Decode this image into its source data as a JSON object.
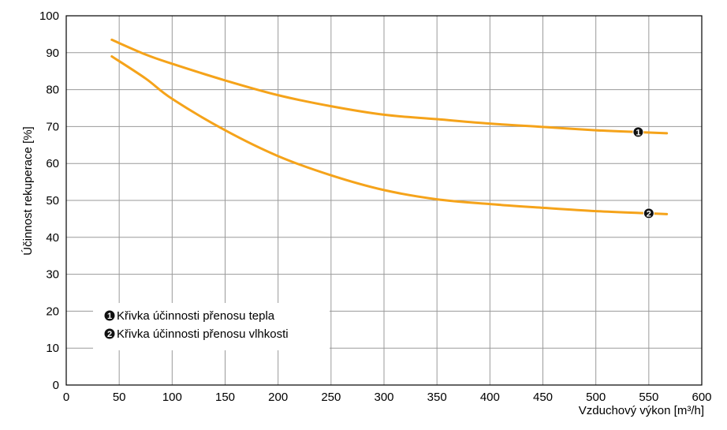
{
  "chart_data": {
    "type": "line",
    "xlabel": "Vzduchový výkon [m³/h]",
    "ylabel": "Účinnost rekuperace [%]",
    "xlim": [
      0,
      600
    ],
    "ylim": [
      0,
      100
    ],
    "x_ticks": [
      0,
      50,
      100,
      150,
      200,
      250,
      300,
      350,
      400,
      450,
      500,
      550,
      600
    ],
    "y_ticks": [
      0,
      10,
      20,
      30,
      40,
      50,
      60,
      70,
      80,
      90,
      100
    ],
    "grid": true,
    "legend_position": "bottom-left",
    "line_color": "#f5a31a",
    "series": [
      {
        "name": "Křivka účinnosti přenosu tepla",
        "marker": "1",
        "x": [
          43,
          75,
          100,
          150,
          200,
          250,
          300,
          350,
          400,
          450,
          500,
          540,
          567
        ],
        "y": [
          93.5,
          89.5,
          87.0,
          82.5,
          78.5,
          75.5,
          73.2,
          72.0,
          70.8,
          69.9,
          69.0,
          68.5,
          68.2
        ]
      },
      {
        "name": "Křivka účinnosti přenosu vlhkosti",
        "marker": "2",
        "x": [
          43,
          75,
          100,
          150,
          200,
          250,
          300,
          350,
          400,
          450,
          500,
          550,
          567
        ],
        "y": [
          89.0,
          83.0,
          77.5,
          69.0,
          62.0,
          56.8,
          52.8,
          50.3,
          49.0,
          48.0,
          47.1,
          46.5,
          46.3
        ]
      }
    ],
    "marker_points": [
      {
        "label": "1",
        "x": 540,
        "y": 68.5
      },
      {
        "label": "2",
        "x": 550,
        "y": 46.5
      }
    ]
  }
}
